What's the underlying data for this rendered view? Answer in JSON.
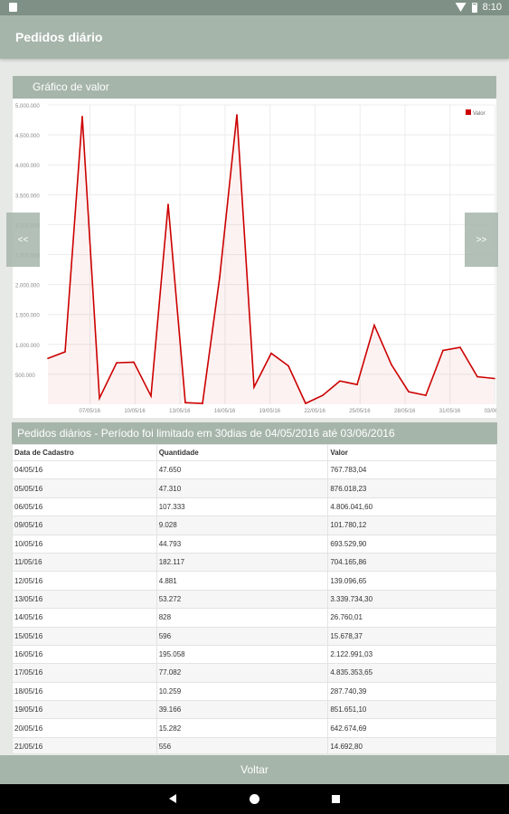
{
  "status_bar": {
    "time": "8:10"
  },
  "app_bar": {
    "title": "Pedidos diário"
  },
  "chart_card": {
    "title": "Gráfico de valor",
    "prev_label": "<<",
    "next_label": ">>"
  },
  "chart_data": {
    "type": "area",
    "title": "Gráfico de valor",
    "legend": [
      {
        "name": "Valor",
        "color": "#cc0000"
      }
    ],
    "legend_position": "top-right",
    "ylim": [
      0,
      5000000
    ],
    "y_ticks": [
      "5.000.000",
      "4.500.000",
      "4.000.000",
      "3.500.000",
      "3.000.000",
      "2.500.000",
      "2.000.000",
      "1.500.000",
      "1.000.000",
      "500.000"
    ],
    "x_ticks": [
      "07/05/16",
      "10/05/16",
      "13/05/16",
      "16/05/16",
      "19/05/16",
      "22/05/16",
      "25/05/16",
      "28/05/16",
      "31/05/16",
      "03/06"
    ],
    "x": [
      "04/05/16",
      "05/05/16",
      "06/05/16",
      "09/05/16",
      "10/05/16",
      "11/05/16",
      "12/05/16",
      "13/05/16",
      "14/05/16",
      "15/05/16",
      "16/05/16",
      "17/05/16",
      "18/05/16",
      "19/05/16",
      "20/05/16",
      "21/05/16",
      "23/05/16",
      "24/05/16",
      "25/05/16",
      "26/05/16",
      "27/05/16",
      "28/05/16",
      "30/05/16",
      "31/05/16",
      "01/06/16",
      "02/06/16",
      "03/06/16"
    ],
    "series": [
      {
        "name": "Valor",
        "values": [
          767783.04,
          876018.23,
          4806041.6,
          101780.12,
          693529.9,
          704165.86,
          139096.65,
          3339734.3,
          26760.01,
          15678.37,
          2122991.03,
          4835353.65,
          287740.39,
          851651.1,
          642674.69,
          14692.8,
          150000,
          390000,
          330000,
          1320000,
          660000,
          210000,
          150000,
          900000,
          950000,
          460000,
          430000
        ]
      }
    ],
    "grid": true
  },
  "table_card": {
    "title": "Pedidos diários - Período foi limitado em 30dias de 04/05/2016 até 03/06/2016",
    "columns": [
      "Data de Cadastro",
      "Quantidade",
      "Valor"
    ],
    "rows": [
      [
        "04/05/16",
        "47.650",
        "767.783,04"
      ],
      [
        "05/05/16",
        "47.310",
        "876.018,23"
      ],
      [
        "06/05/16",
        "107.333",
        "4.806.041,60"
      ],
      [
        "09/05/16",
        "9.028",
        "101.780,12"
      ],
      [
        "10/05/16",
        "44.793",
        "693.529,90"
      ],
      [
        "11/05/16",
        "182.117",
        "704.165,86"
      ],
      [
        "12/05/16",
        "4.881",
        "139.096,65"
      ],
      [
        "13/05/16",
        "53.272",
        "3.339.734,30"
      ],
      [
        "14/05/16",
        "828",
        "26.760,01"
      ],
      [
        "15/05/16",
        "596",
        "15.678,37"
      ],
      [
        "16/05/16",
        "195.058",
        "2.122.991,03"
      ],
      [
        "17/05/16",
        "77.082",
        "4.835.353,65"
      ],
      [
        "18/05/16",
        "10.259",
        "287.740,39"
      ],
      [
        "19/05/16",
        "39.166",
        "851.651,10"
      ],
      [
        "20/05/16",
        "15.282",
        "642.674,69"
      ],
      [
        "21/05/16",
        "556",
        "14.692,80"
      ]
    ]
  },
  "footer": {
    "back_label": "Voltar"
  }
}
